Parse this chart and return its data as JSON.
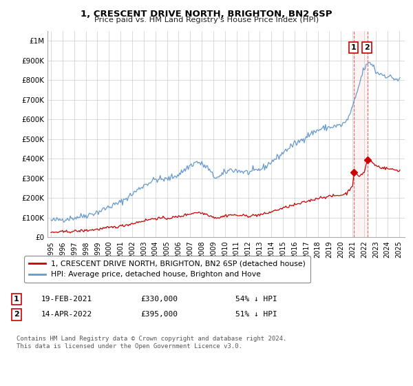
{
  "title": "1, CRESCENT DRIVE NORTH, BRIGHTON, BN2 6SP",
  "subtitle": "Price paid vs. HM Land Registry's House Price Index (HPI)",
  "legend_label_red": "1, CRESCENT DRIVE NORTH, BRIGHTON, BN2 6SP (detached house)",
  "legend_label_blue": "HPI: Average price, detached house, Brighton and Hove",
  "annotation1_date": "19-FEB-2021",
  "annotation1_price": "£330,000",
  "annotation1_hpi": "54% ↓ HPI",
  "annotation2_date": "14-APR-2022",
  "annotation2_price": "£395,000",
  "annotation2_hpi": "51% ↓ HPI",
  "footnote": "Contains HM Land Registry data © Crown copyright and database right 2024.\nThis data is licensed under the Open Government Licence v3.0.",
  "ylim": [
    0,
    1050000
  ],
  "yticks": [
    0,
    100000,
    200000,
    300000,
    400000,
    500000,
    600000,
    700000,
    800000,
    900000,
    1000000
  ],
  "ytick_labels": [
    "£0",
    "£100K",
    "£200K",
    "£300K",
    "£400K",
    "£500K",
    "£600K",
    "£700K",
    "£800K",
    "£900K",
    "£1M"
  ],
  "red_color": "#cc0000",
  "blue_color": "#6699cc",
  "annotation_line_color": "#dd6666",
  "background_color": "#ffffff",
  "grid_color": "#cccccc",
  "sale1_x": 2021.13,
  "sale1_y": 330000,
  "sale2_x": 2022.29,
  "sale2_y": 395000,
  "vline1_x": 2021.13,
  "vline2_x": 2022.29,
  "xlim_left": 1994.7,
  "xlim_right": 2025.5,
  "xtick_years": [
    1995,
    1996,
    1997,
    1998,
    1999,
    2000,
    2001,
    2002,
    2003,
    2004,
    2005,
    2006,
    2007,
    2008,
    2009,
    2010,
    2011,
    2012,
    2013,
    2014,
    2015,
    2016,
    2017,
    2018,
    2019,
    2020,
    2021,
    2022,
    2023,
    2024,
    2025
  ]
}
